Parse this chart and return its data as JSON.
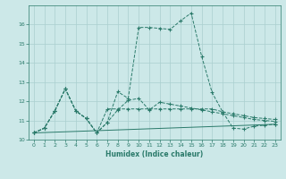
{
  "title": "",
  "xlabel": "Humidex (Indice chaleur)",
  "background_color": "#cce8e8",
  "grid_color": "#aacfcf",
  "line_color": "#2a7a6a",
  "xlim": [
    -0.5,
    23.5
  ],
  "ylim": [
    10,
    17
  ],
  "xticks": [
    0,
    1,
    2,
    3,
    4,
    5,
    6,
    7,
    8,
    9,
    10,
    11,
    12,
    13,
    14,
    15,
    16,
    17,
    18,
    19,
    20,
    21,
    22,
    23
  ],
  "yticks": [
    10,
    11,
    12,
    13,
    14,
    15,
    16
  ],
  "series": [
    {
      "x": [
        0,
        1,
        2,
        3,
        4,
        5,
        6,
        7,
        8,
        9,
        10,
        11,
        12,
        13,
        14,
        15,
        16,
        17,
        18,
        19,
        20,
        21,
        22,
        23
      ],
      "y": [
        10.35,
        10.6,
        11.5,
        12.65,
        11.5,
        11.1,
        10.35,
        10.9,
        12.5,
        12.15,
        15.85,
        15.85,
        15.8,
        15.75,
        16.2,
        16.6,
        14.35,
        12.45,
        11.45,
        10.6,
        10.55,
        10.7,
        10.75,
        10.8
      ]
    },
    {
      "x": [
        0,
        1,
        2,
        3,
        4,
        5,
        6,
        7,
        8,
        9,
        10,
        11,
        12,
        13,
        14,
        15,
        16,
        17,
        18,
        19,
        20,
        21,
        22,
        23
      ],
      "y": [
        10.35,
        10.6,
        11.5,
        12.65,
        11.5,
        11.1,
        10.35,
        11.6,
        11.6,
        11.6,
        11.6,
        11.6,
        11.6,
        11.6,
        11.6,
        11.6,
        11.6,
        11.6,
        11.45,
        11.35,
        11.25,
        11.15,
        11.1,
        11.05
      ]
    },
    {
      "x": [
        0,
        23
      ],
      "y": [
        10.35,
        10.8
      ]
    },
    {
      "x": [
        0,
        1,
        2,
        3,
        4,
        5,
        6,
        7,
        8,
        9,
        10,
        11,
        12,
        13,
        14,
        15,
        16,
        17,
        18,
        19,
        20,
        21,
        22,
        23
      ],
      "y": [
        10.35,
        10.6,
        11.5,
        12.65,
        11.5,
        11.1,
        10.35,
        10.9,
        11.55,
        12.05,
        12.15,
        11.55,
        11.95,
        11.85,
        11.75,
        11.65,
        11.55,
        11.45,
        11.35,
        11.25,
        11.15,
        11.05,
        11.0,
        10.95
      ]
    }
  ]
}
